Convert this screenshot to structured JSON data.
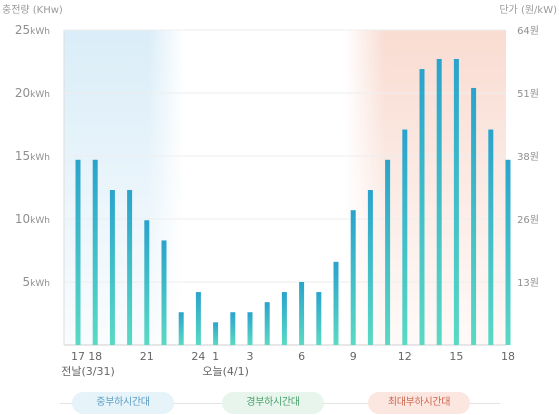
{
  "axes": {
    "left_title": "충전량 (KHw)",
    "right_title": "단가 (원/kW)"
  },
  "chart_data": {
    "type": "bar",
    "categories": [
      "17",
      "18",
      "19",
      "20",
      "21",
      "22",
      "23",
      "24",
      "1",
      "2",
      "3",
      "4",
      "5",
      "6",
      "7",
      "8",
      "9",
      "10",
      "11",
      "12",
      "13",
      "14",
      "15",
      "16",
      "17",
      "18"
    ],
    "tick_labels": [
      "17",
      "18",
      "",
      "",
      "21",
      "",
      "",
      "24",
      "1",
      "",
      "3",
      "",
      "",
      "6",
      "",
      "",
      "9",
      "",
      "",
      "12",
      "",
      "",
      "15",
      "",
      "",
      "18"
    ],
    "date_labels": [
      {
        "at": "17",
        "text": "전날(3/31)"
      },
      {
        "at": "1",
        "text": "오늘(4/1)"
      }
    ],
    "series": [
      {
        "values": [
          14.7,
          14.7,
          12.3,
          12.3,
          9.9,
          8.3,
          2.6,
          4.2,
          1.8,
          2.6,
          2.6,
          3.4,
          4.2,
          5.0,
          4.2,
          6.6,
          10.7,
          12.3,
          14.7,
          17.1,
          21.9,
          22.7,
          22.7,
          20.4,
          17.1,
          14.7
        ]
      }
    ],
    "ylabel": "충전량 (KHw)",
    "ylim": [
      0,
      25
    ],
    "y_ticks": [
      {
        "value": 5,
        "label": "5kWh"
      },
      {
        "value": 10,
        "label": "10kWh"
      },
      {
        "value": 15,
        "label": "15kWh"
      },
      {
        "value": 20,
        "label": "20kWh"
      },
      {
        "value": 25,
        "label": "25kWh"
      }
    ],
    "y2label": "단가 (원/kW)",
    "y2_ticks": [
      "13원",
      "26원",
      "38원",
      "51원",
      "64원"
    ],
    "grid": true
  },
  "legend": {
    "mid_load": "중부하시간대",
    "low_load": "경부하시간대",
    "max_load": "최대부하시간대"
  },
  "colors": {
    "bar_top": "#2aa3cc",
    "bar_bottom": "#5ad9c4",
    "mid_band": "#d6ebf7",
    "max_band": "#f8d8cd",
    "grid": "#eeeeee"
  }
}
